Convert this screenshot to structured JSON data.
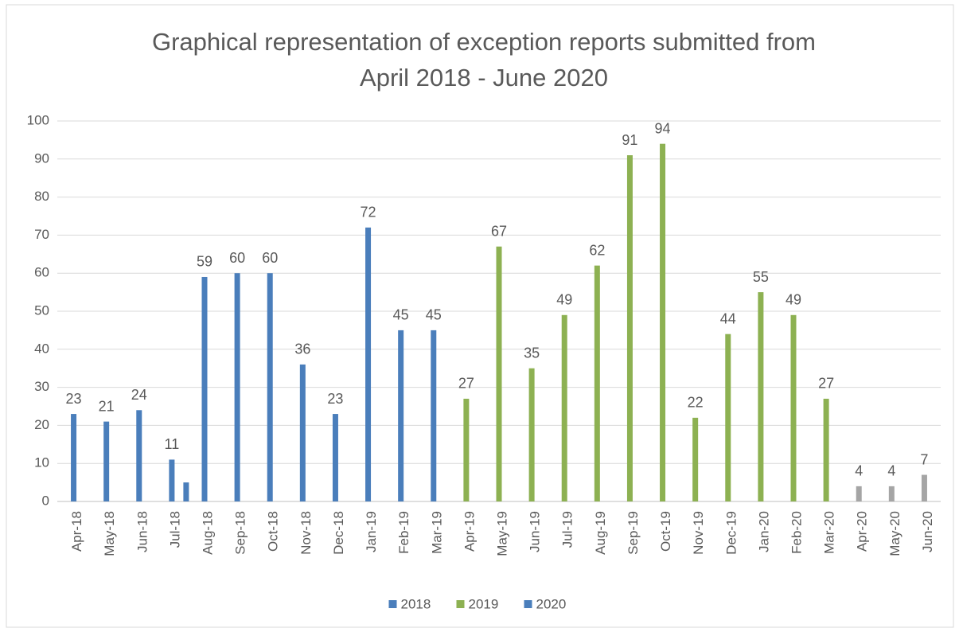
{
  "chart_data": {
    "type": "bar",
    "title": [
      "Graphical representation of exception reports submitted from",
      "April 2018 - June 2020"
    ],
    "categories": [
      "Apr-18",
      "May-18",
      "Jun-18",
      "Jul-18",
      "Aug-18",
      "Sep-18",
      "Oct-18",
      "Nov-18",
      "Dec-18",
      "Jan-19",
      "Feb-19",
      "Mar-19",
      "Apr-19",
      "May-19",
      "Jun-19",
      "Jul-19",
      "Aug-19",
      "Sep-19",
      "Oct-19",
      "Nov-19",
      "Dec-19",
      "Jan-20",
      "Feb-20",
      "Mar-20",
      "Apr-20",
      "May-20",
      "Jun-20"
    ],
    "series": [
      {
        "name": "2018",
        "color": "#4a7ebb",
        "data_labels": true,
        "values": [
          23,
          21,
          24,
          11,
          59,
          60,
          60,
          36,
          23,
          72,
          45,
          45,
          null,
          null,
          null,
          null,
          null,
          null,
          null,
          null,
          null,
          null,
          null,
          null,
          null,
          null,
          null
        ]
      },
      {
        "name": "2019",
        "color": "#8db152",
        "data_labels": true,
        "values": [
          null,
          null,
          null,
          null,
          null,
          null,
          null,
          null,
          null,
          null,
          null,
          null,
          27,
          67,
          35,
          49,
          62,
          91,
          94,
          22,
          44,
          55,
          49,
          27,
          null,
          null,
          null
        ]
      },
      {
        "name": "2020",
        "color": "#4a7ebb",
        "data_labels": false,
        "values": [
          null,
          null,
          null,
          5,
          null,
          null,
          null,
          null,
          null,
          null,
          null,
          null,
          null,
          null,
          null,
          null,
          null,
          null,
          null,
          null,
          null,
          null,
          null,
          null,
          null,
          null,
          null
        ]
      },
      {
        "color": "#a5a5a5",
        "data_labels": true,
        "values": [
          null,
          null,
          null,
          null,
          null,
          null,
          null,
          null,
          null,
          null,
          null,
          null,
          null,
          null,
          null,
          null,
          null,
          null,
          null,
          null,
          null,
          null,
          null,
          null,
          4,
          4,
          7
        ]
      }
    ],
    "ylim": [
      0,
      100
    ],
    "yticks": [
      0,
      10,
      20,
      30,
      40,
      50,
      60,
      70,
      80,
      90,
      100
    ],
    "grid": true,
    "legend": "bottom"
  }
}
